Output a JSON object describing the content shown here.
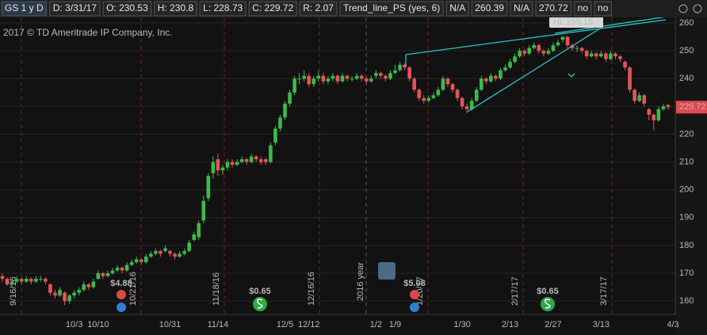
{
  "header": {
    "symbol": "GS 1 y D",
    "fields": [
      "D: 3/31/17",
      "O: 230.53",
      "H: 230.8",
      "L: 228.73",
      "C: 229.72",
      "R: 2.07"
    ],
    "study": "Trend_line_PS (yes, 6)",
    "study_values": [
      "N/A",
      "260.39",
      "N/A",
      "270.72",
      "no",
      "no"
    ]
  },
  "chart_data": {
    "type": "candlestick",
    "watermark": "2017 © TD Ameritrade IP Company, Inc.",
    "hi_label": "Hi: 255.15",
    "last_price": 229.72,
    "year_marker": "2016 year",
    "expirations": [
      "9/16/16",
      "10/21/16",
      "11/18/16",
      "12/16/16",
      "1/20/17",
      "2/17/17",
      "3/17/17"
    ],
    "dividends": [
      "$4.88",
      "$0.65",
      "$5.08",
      "$0.65"
    ],
    "categories": [
      null,
      null,
      null,
      null,
      null,
      null,
      null,
      null,
      null,
      null,
      null,
      null,
      null,
      null,
      null,
      "10/3",
      null,
      null,
      null,
      null,
      "10/10",
      null,
      null,
      null,
      null,
      null,
      null,
      null,
      null,
      null,
      null,
      null,
      null,
      null,
      null,
      "10/31",
      null,
      null,
      null,
      null,
      null,
      null,
      null,
      null,
      null,
      "11/14",
      null,
      null,
      null,
      null,
      null,
      null,
      null,
      null,
      null,
      null,
      null,
      null,
      null,
      "12/5",
      null,
      null,
      null,
      null,
      "12/12",
      null,
      null,
      null,
      null,
      null,
      null,
      null,
      null,
      null,
      null,
      null,
      null,
      null,
      "1/2",
      null,
      null,
      null,
      "1/9",
      null,
      null,
      null,
      null,
      null,
      null,
      null,
      null,
      null,
      null,
      null,
      null,
      null,
      "1/30",
      null,
      null,
      null,
      null,
      null,
      null,
      null,
      null,
      null,
      "2/13",
      null,
      null,
      null,
      null,
      null,
      null,
      null,
      null,
      "2/27",
      null,
      null,
      null,
      null,
      null,
      null,
      null,
      null,
      null,
      "3/13",
      null,
      null,
      null,
      null,
      null,
      null,
      null,
      null,
      null,
      null,
      null,
      null,
      null,
      null,
      "4/3"
    ],
    "open": [
      169,
      168,
      166,
      167,
      168,
      167,
      168,
      167,
      168,
      168,
      166,
      163,
      162,
      163,
      160,
      162,
      163,
      164,
      166,
      165,
      168,
      170,
      169,
      170,
      171,
      172,
      171,
      173,
      174,
      175,
      174,
      176,
      177,
      178,
      178,
      178,
      177,
      176,
      177,
      178,
      182,
      183,
      189,
      197,
      206,
      211,
      207,
      208,
      210,
      209,
      210,
      211,
      210,
      212,
      211,
      211,
      210,
      217,
      222,
      226,
      231,
      235,
      240,
      240,
      241,
      238,
      240,
      241,
      239,
      240,
      241,
      239,
      241,
      240,
      240,
      241,
      240,
      239,
      241,
      242,
      241,
      240,
      242,
      243,
      245,
      244,
      240,
      236,
      233,
      232,
      233,
      234,
      236,
      240,
      238,
      236,
      233,
      230,
      229,
      232,
      236,
      240,
      239,
      241,
      240,
      243,
      244,
      246,
      248,
      250,
      249,
      251,
      252,
      250,
      249,
      250,
      252,
      254,
      255,
      252,
      251,
      251,
      250,
      248,
      249,
      248,
      249,
      247,
      249,
      248,
      246,
      244,
      236,
      232,
      234,
      229,
      227,
      225,
      229,
      230.53,
      null
    ],
    "high": [
      170,
      168.5,
      168,
      169,
      168.5,
      169,
      168.5,
      169,
      169,
      168.5,
      166.5,
      164,
      165,
      163.5,
      162.5,
      164,
      165,
      167,
      166.5,
      168,
      171,
      170.5,
      171,
      172,
      173,
      172.5,
      174,
      175,
      176,
      175.5,
      177,
      178,
      179,
      178.5,
      180,
      178.5,
      177.5,
      178,
      179,
      182,
      185,
      189,
      198,
      206,
      212,
      213,
      209,
      211,
      211,
      211,
      212,
      211.5,
      213,
      212.5,
      212,
      211.5,
      217,
      223,
      227,
      232,
      236,
      241,
      242,
      243,
      242,
      241,
      243,
      242,
      241,
      242,
      241.5,
      242,
      241.5,
      241,
      242,
      241.5,
      240.5,
      241,
      243,
      242.5,
      241.5,
      243,
      245,
      246,
      245.5,
      244.5,
      240.5,
      236.5,
      234,
      234,
      235,
      237,
      241,
      240.5,
      238.5,
      236.5,
      233.5,
      231,
      233,
      237,
      241,
      240.5,
      242,
      241.5,
      244,
      245,
      247,
      249,
      251,
      250.5,
      252,
      253,
      252.5,
      250.5,
      251,
      253,
      254,
      255.15,
      255.5,
      252.5,
      252,
      251.5,
      250.5,
      250,
      249.5,
      250,
      249.5,
      250,
      249.5,
      248.5,
      246.5,
      244.5,
      236.5,
      235,
      234.5,
      229.5,
      227.5,
      230,
      231,
      230.8,
      null
    ],
    "low": [
      167,
      165.5,
      165,
      166.5,
      166,
      166.5,
      166,
      166.5,
      167,
      166,
      162,
      161,
      161.5,
      158.5,
      159,
      161,
      162,
      163.5,
      164,
      164.5,
      167.5,
      168,
      168.5,
      169.5,
      170.5,
      170,
      170.5,
      172.5,
      173.5,
      173,
      173.5,
      175.5,
      176.5,
      176,
      177.5,
      176,
      175,
      175.5,
      176.5,
      177.5,
      181.5,
      182,
      188,
      196,
      204,
      205,
      205.5,
      207,
      208,
      208.5,
      209.5,
      209,
      209.5,
      210,
      209,
      209,
      209.5,
      216,
      221,
      225,
      230,
      234,
      238,
      239,
      237,
      237,
      239,
      238,
      238,
      239,
      238,
      238.5,
      239,
      239,
      239.5,
      239,
      238,
      238.5,
      240,
      240,
      239,
      239.5,
      241.5,
      242.5,
      243,
      239,
      235,
      232,
      231,
      231.5,
      232.5,
      233.5,
      235.5,
      237,
      235,
      232,
      229,
      227.5,
      228.5,
      231.5,
      235.5,
      238,
      238.5,
      239,
      239.5,
      242.5,
      243.5,
      245.5,
      247.5,
      248,
      248.5,
      250.5,
      249,
      248,
      248.5,
      249.5,
      251.5,
      253,
      251,
      250,
      249.5,
      249,
      247,
      247.5,
      247,
      247.5,
      246,
      246.5,
      247,
      246,
      243,
      235,
      231,
      231.5,
      230,
      225,
      221.5,
      224.5,
      228.5,
      228.73,
      null
    ],
    "close": [
      168,
      166,
      167,
      168,
      167,
      168,
      167,
      168,
      168,
      167,
      163,
      162,
      164,
      160,
      162,
      163,
      164,
      166,
      165,
      167,
      170,
      169,
      170,
      171,
      172,
      171,
      173,
      174,
      175,
      174,
      176,
      177,
      178,
      177,
      179,
      177,
      176,
      177,
      178,
      181,
      184,
      188,
      196,
      205,
      210,
      207,
      208,
      210,
      209,
      210,
      211,
      210,
      212,
      211,
      210,
      210,
      216,
      222,
      226,
      231,
      235,
      240,
      240,
      241,
      238,
      240,
      241,
      239,
      240,
      241,
      239,
      241,
      240,
      240,
      241,
      240,
      239,
      240,
      242,
      241,
      240,
      242,
      243,
      245,
      244,
      240,
      236,
      233,
      232,
      233,
      234,
      236,
      240,
      238,
      236,
      233,
      230,
      229,
      232,
      236,
      240,
      239,
      241,
      240,
      243,
      244,
      246,
      248,
      250,
      249,
      251,
      252,
      250,
      249,
      250,
      252,
      253,
      255,
      252,
      251,
      251,
      250,
      248,
      249,
      248,
      249,
      247,
      249,
      248,
      247,
      244,
      236,
      232,
      234,
      231,
      227,
      225,
      229,
      230,
      229.72,
      null
    ],
    "up_color": "#3dbb4a",
    "down_color": "#e5545a",
    "ylim": [
      155.2,
      262
    ],
    "yticks": [
      160,
      170,
      180,
      190,
      200,
      210,
      220,
      230,
      240,
      250,
      260
    ],
    "grid": true
  }
}
